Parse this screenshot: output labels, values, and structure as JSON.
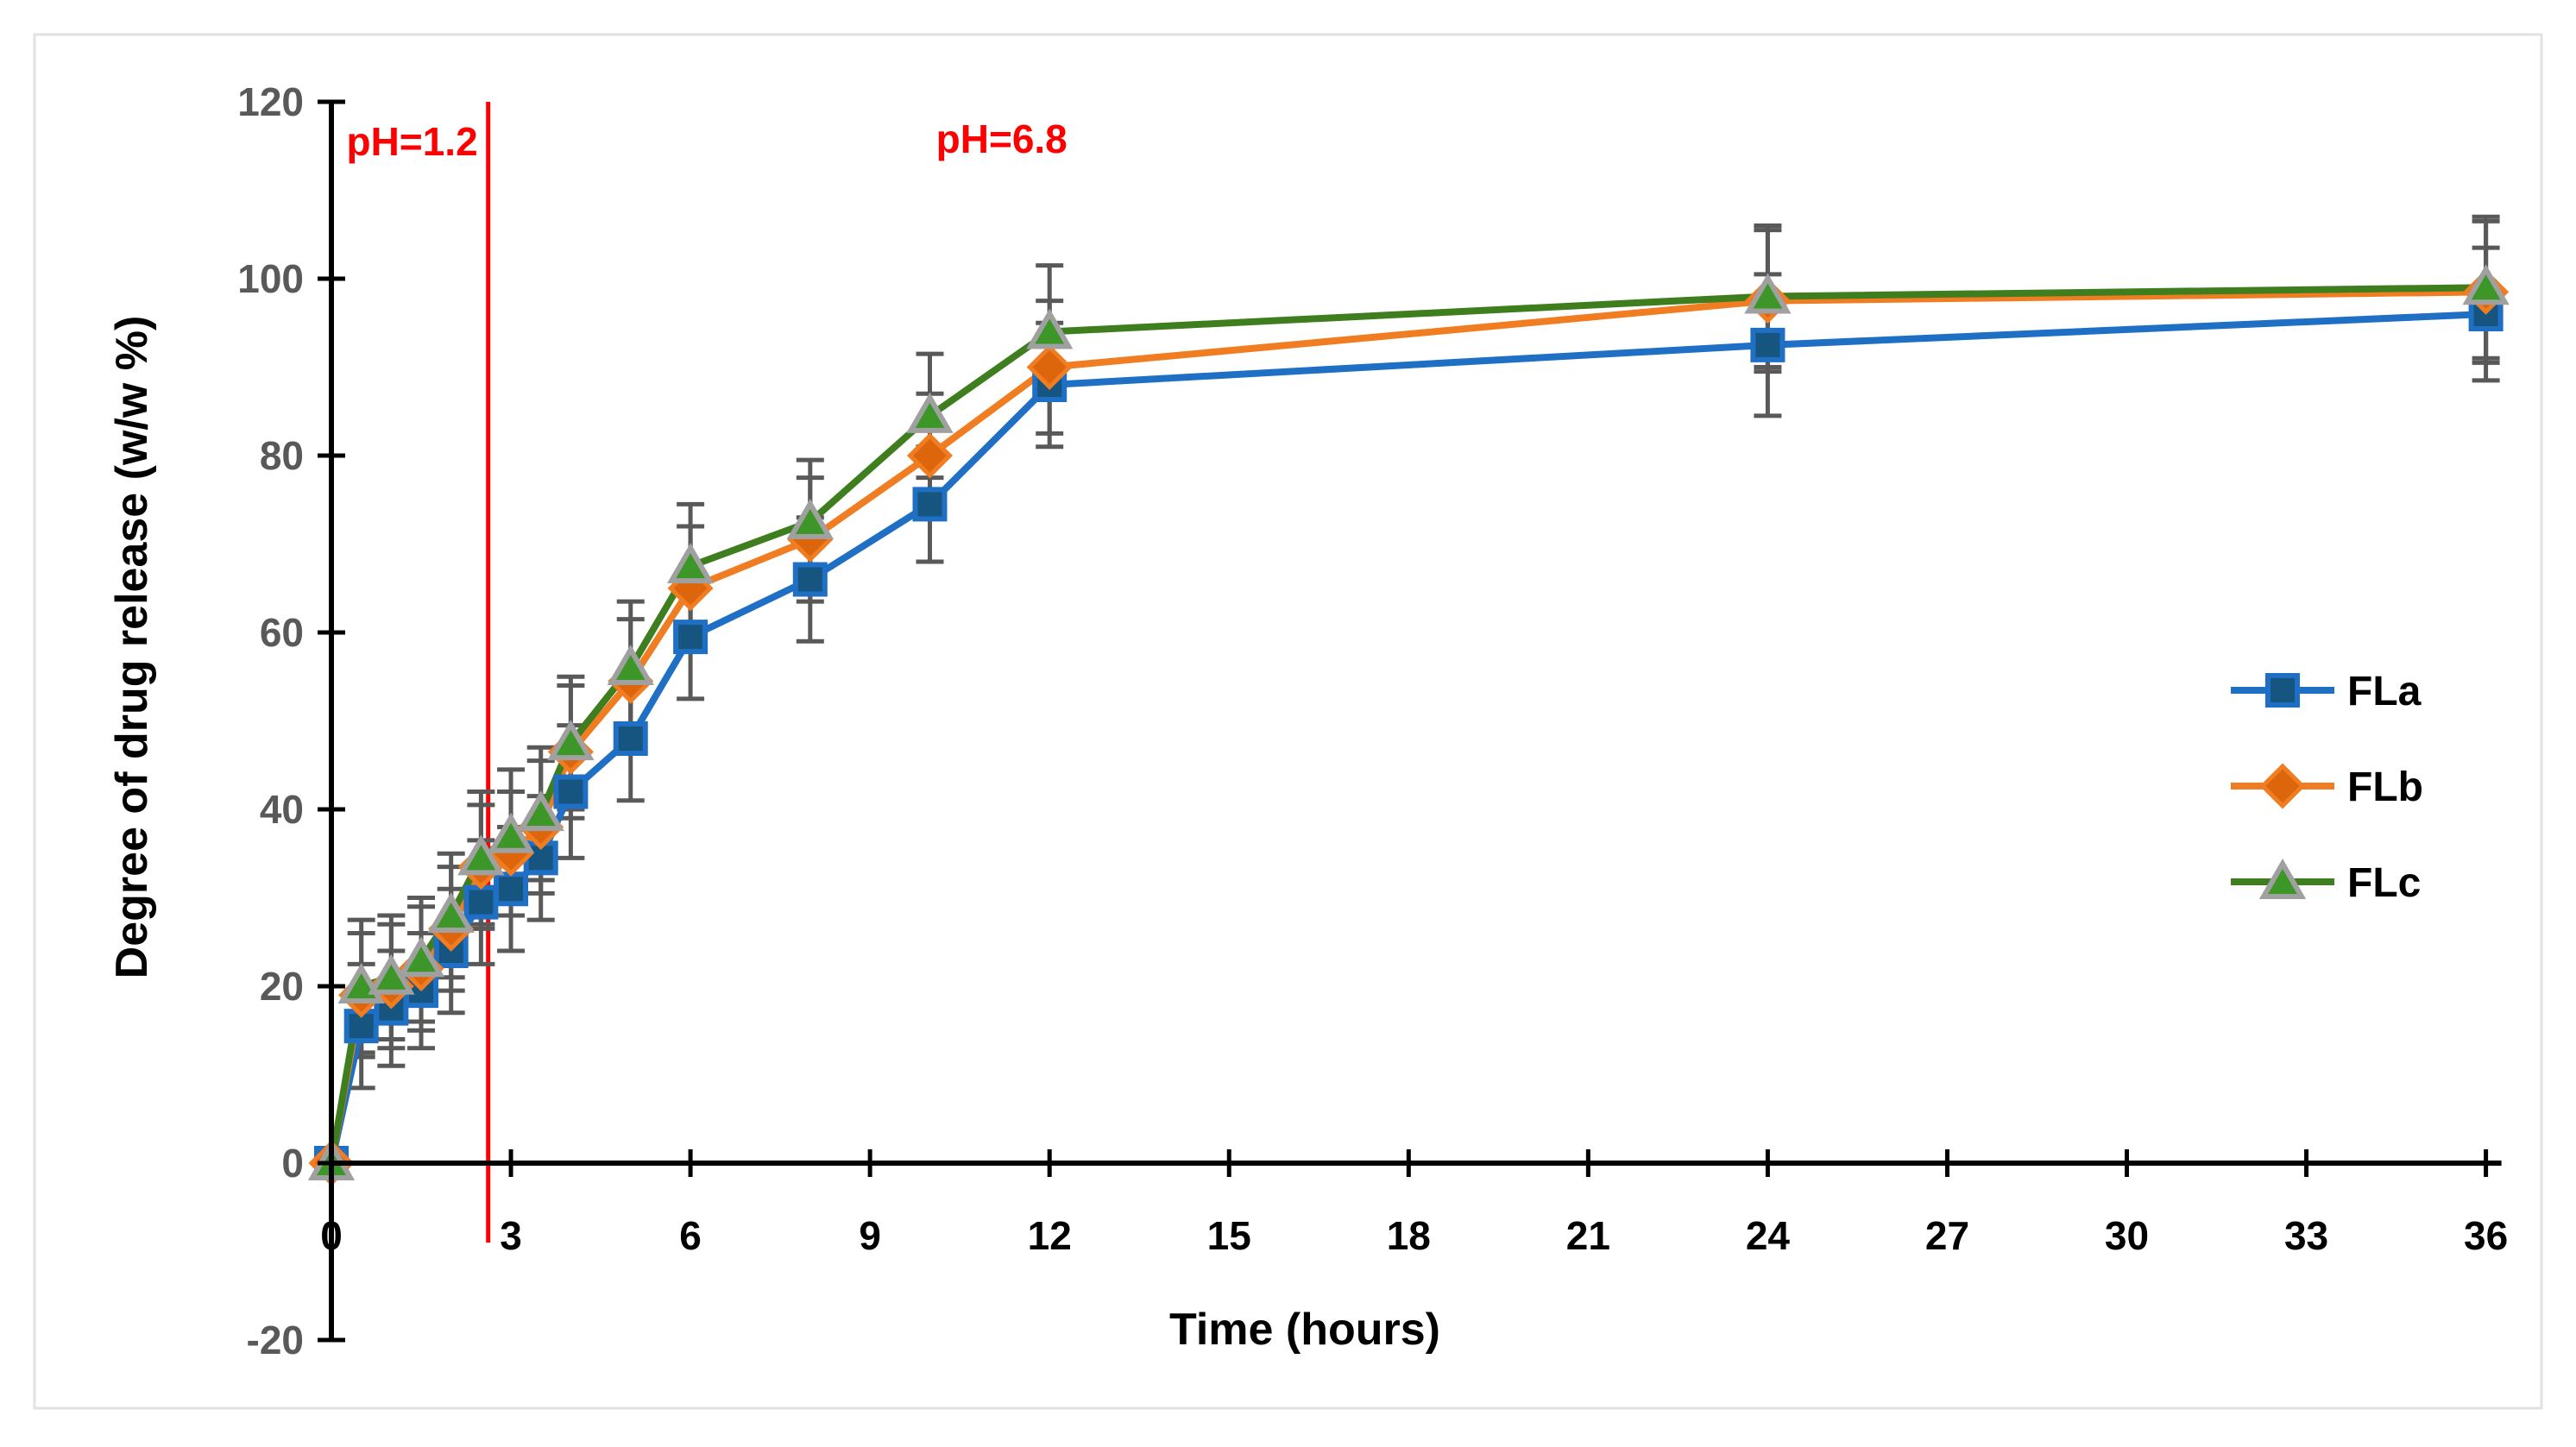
{
  "chart_data": {
    "type": "line",
    "title": "",
    "xlabel": "Time (hours)",
    "ylabel": "Degree of drug release (w/w %)",
    "x_hours": [
      0,
      0.5,
      1,
      1.5,
      2,
      2.5,
      3,
      3.5,
      4,
      5,
      6,
      8,
      10,
      12,
      24,
      36
    ],
    "x_axis_ticks": [
      0,
      3,
      6,
      9,
      12,
      15,
      18,
      21,
      24,
      27,
      30,
      33,
      36
    ],
    "y_axis_ticks": [
      -20,
      0,
      20,
      40,
      60,
      80,
      100,
      120
    ],
    "xlim": [
      0,
      36
    ],
    "ylim": [
      -20,
      120
    ],
    "grid": false,
    "legend_position": "right",
    "series": [
      {
        "name": "FLa",
        "marker": "square",
        "line_color": "#1F6FC5",
        "marker_fill": "#16557F",
        "marker_stroke": "#1F6FC5",
        "values": [
          0,
          15.5,
          17.5,
          19.5,
          24,
          29.5,
          31,
          34.5,
          42,
          48,
          59.5,
          66,
          74.5,
          88,
          92.5,
          96
        ],
        "errors": [
          0,
          7,
          6.5,
          6.5,
          7,
          7,
          7,
          7,
          7.5,
          7,
          7,
          7,
          6.5,
          7,
          8,
          7.5
        ]
      },
      {
        "name": "FLb",
        "marker": "diamond",
        "line_color": "#F07D22",
        "marker_fill": "#DD650B",
        "marker_stroke": "#F07D22",
        "values": [
          0,
          19,
          20,
          22,
          26.5,
          33.5,
          35,
          38,
          46.5,
          54.5,
          65,
          70.5,
          80,
          90,
          97.5,
          98.5
        ],
        "errors": [
          0,
          7,
          7,
          7,
          7,
          7,
          7,
          7.5,
          7.5,
          7,
          7,
          7,
          7,
          7.5,
          8,
          8
        ]
      },
      {
        "name": "FLc",
        "marker": "triangle",
        "line_color": "#3F7E1E",
        "marker_fill": "#3C9628",
        "marker_stroke": "#A0A0A0",
        "values": [
          0,
          20,
          21,
          23,
          28,
          34.5,
          37,
          39.5,
          47.5,
          56,
          67.5,
          72.5,
          84.5,
          94,
          98,
          99
        ],
        "errors": [
          0,
          7.5,
          7,
          7,
          7,
          7.5,
          7.5,
          7.5,
          7.5,
          7.5,
          7,
          7,
          7,
          7.5,
          8,
          8
        ]
      }
    ],
    "annotations": [
      {
        "text": "pH=1.2",
        "x_hours": 1.35,
        "y_value": 115.5,
        "color": "#FF0000"
      },
      {
        "text": "pH=6.8",
        "x_hours": 11.2,
        "y_value": 115.8,
        "color": "#FF0000"
      }
    ],
    "reference_line": {
      "x_hours": 2.62,
      "y_top_value": 120,
      "y_bottom_value": -9,
      "color": "#FF0000"
    },
    "error_bar_color": "#595959",
    "axis_color": "#000000",
    "ytick_label_color": "#595959",
    "frame_color": "#E2E2E2"
  }
}
